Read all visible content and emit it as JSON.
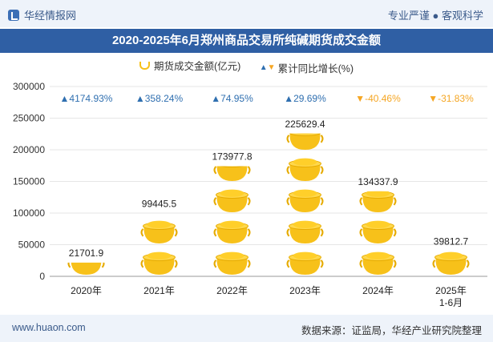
{
  "header": {
    "logo_text": "华经情报网",
    "tagline": "专业严谨 ● 客观科学",
    "title": "2020-2025年6月郑州商品交易所纯碱期货成交金额"
  },
  "legend": {
    "series1": "期货成交金额(亿元)",
    "series2": "累计同比增长(%)"
  },
  "footer": {
    "website": "www.huaon.com",
    "source": "数据来源：证监局，华经产业研究院整理"
  },
  "colors": {
    "header_bar": "#2f5fa4",
    "bar_gold": "#f7c11a",
    "positive": "#2f6fb0",
    "negative": "#f5a623"
  },
  "chart_data": {
    "type": "bar",
    "categories": [
      "2020年",
      "2021年",
      "2022年",
      "2023年",
      "2024年",
      "2025年\n1-6月"
    ],
    "series": [
      {
        "name": "期货成交金额(亿元)",
        "values": [
          21701.9,
          99445.5,
          173977.8,
          225629.4,
          134337.9,
          39812.7
        ],
        "labels": [
          "21701.9",
          "99445.5",
          "173977.8",
          "225629.4",
          "134337.9",
          "39812.7"
        ]
      },
      {
        "name": "累计同比增长(%)",
        "values": [
          4174.93,
          358.24,
          74.95,
          29.69,
          -40.46,
          -31.83
        ],
        "labels": [
          "▲4174.93%",
          "▲358.24%",
          "▲74.95%",
          "▲29.69%",
          "▼-40.46%",
          "▼-31.83%"
        ]
      }
    ],
    "ylim": [
      0,
      300000
    ],
    "yticks": [
      "0",
      "50000",
      "100000",
      "150000",
      "200000",
      "250000",
      "300000"
    ],
    "icon": "pot-of-gold-icon"
  }
}
